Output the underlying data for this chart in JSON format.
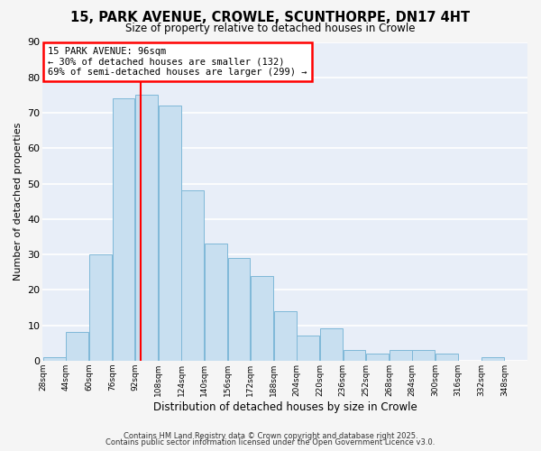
{
  "title_line1": "15, PARK AVENUE, CROWLE, SCUNTHORPE, DN17 4HT",
  "title_line2": "Size of property relative to detached houses in Crowle",
  "xlabel": "Distribution of detached houses by size in Crowle",
  "ylabel": "Number of detached properties",
  "bar_color": "#c8dff0",
  "bar_edge_color": "#7fb8d8",
  "background_color": "#e8eef8",
  "fig_background_color": "#f5f5f5",
  "grid_color": "#ffffff",
  "bin_starts": [
    28,
    44,
    60,
    76,
    92,
    108,
    124,
    140,
    156,
    172,
    188,
    204,
    220,
    236,
    252,
    268,
    284,
    300,
    316,
    332
  ],
  "bin_width": 16,
  "counts": [
    1,
    8,
    30,
    74,
    75,
    72,
    48,
    33,
    29,
    24,
    14,
    7,
    9,
    3,
    2,
    3,
    3,
    2,
    0,
    1
  ],
  "tick_labels": [
    "28sqm",
    "44sqm",
    "60sqm",
    "76sqm",
    "92sqm",
    "108sqm",
    "124sqm",
    "140sqm",
    "156sqm",
    "172sqm",
    "188sqm",
    "204sqm",
    "220sqm",
    "236sqm",
    "252sqm",
    "268sqm",
    "284sqm",
    "300sqm",
    "316sqm",
    "332sqm",
    "348sqm"
  ],
  "red_line_x": 96,
  "annotation_title": "15 PARK AVENUE: 96sqm",
  "annotation_line2": "← 30% of detached houses are smaller (132)",
  "annotation_line3": "69% of semi-detached houses are larger (299) →",
  "ylim": [
    0,
    90
  ],
  "yticks": [
    0,
    10,
    20,
    30,
    40,
    50,
    60,
    70,
    80,
    90
  ],
  "footer1": "Contains HM Land Registry data © Crown copyright and database right 2025.",
  "footer2": "Contains public sector information licensed under the Open Government Licence v3.0."
}
